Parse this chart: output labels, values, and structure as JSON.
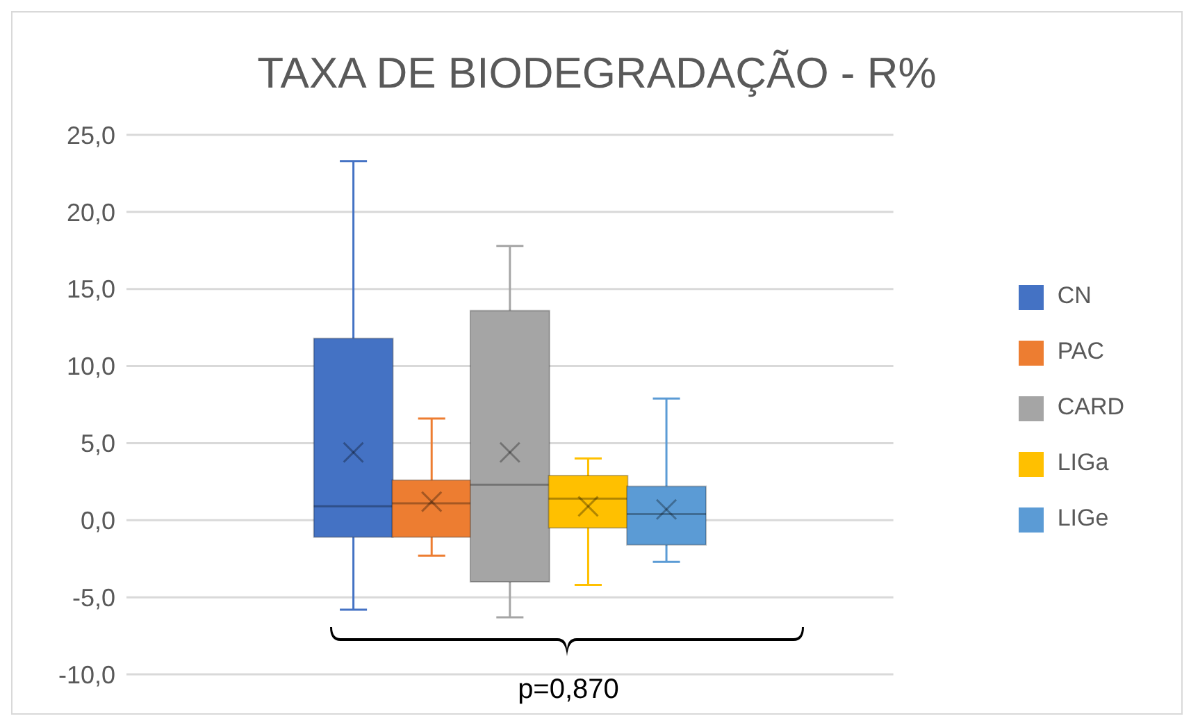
{
  "chart_data": {
    "type": "box",
    "title": "TAXA DE BIODEGRADAÇÃO - R%",
    "categories": [
      null
    ],
    "series": [
      {
        "name": "CN",
        "color": "#4472c4",
        "boxes": [
          {
            "low": -5.8,
            "q1": -1.1,
            "median": 0.9,
            "q3": 11.8,
            "high": 23.3,
            "mean": 4.4
          }
        ]
      },
      {
        "name": "PAC",
        "color": "#ed7d31",
        "boxes": [
          {
            "low": -2.3,
            "q1": -1.1,
            "median": 1.1,
            "q3": 2.6,
            "high": 6.6,
            "mean": 1.2
          }
        ]
      },
      {
        "name": "CARD",
        "color": "#a5a5a5",
        "boxes": [
          {
            "low": -6.3,
            "q1": -4.0,
            "median": 2.3,
            "q3": 13.6,
            "high": 17.8,
            "mean": 4.4
          }
        ]
      },
      {
        "name": "LIGa",
        "color": "#ffc000",
        "boxes": [
          {
            "low": -4.2,
            "q1": -0.5,
            "median": 1.4,
            "q3": 2.9,
            "high": 4.0,
            "mean": 0.9
          }
        ]
      },
      {
        "name": "LIGe",
        "color": "#5b9bd5",
        "boxes": [
          {
            "low": -2.7,
            "q1": -1.6,
            "median": 0.4,
            "q3": 2.2,
            "high": 7.9,
            "mean": 0.7
          }
        ]
      }
    ],
    "ylim": [
      -10,
      25
    ],
    "yticks": [
      {
        "value": -10,
        "label": "-10,0"
      },
      {
        "value": -5,
        "label": "-5,0"
      },
      {
        "value": 0,
        "label": "0,0"
      },
      {
        "value": 5,
        "label": "5,0"
      },
      {
        "value": 10,
        "label": "10,0"
      },
      {
        "value": 15,
        "label": "15,0"
      },
      {
        "value": 20,
        "label": "20,0"
      },
      {
        "value": 25,
        "label": "25,0"
      }
    ],
    "grid": "y",
    "legend": "right",
    "annotations": [
      "p=0,870"
    ]
  }
}
